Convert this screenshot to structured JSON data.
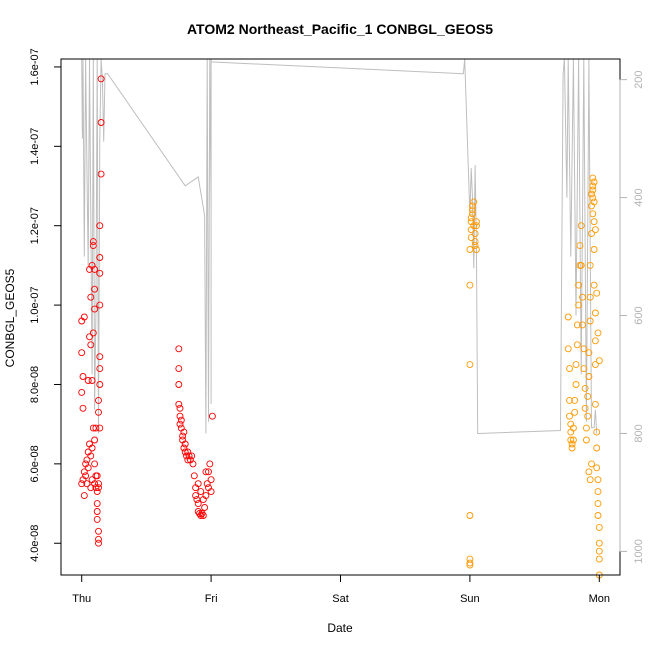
{
  "chart_data": {
    "type": "scatter",
    "title": "ATOM2 Northeast_Pacific_1 CONBGL_GEOS5",
    "xlabel": "Date",
    "ylabel": "CONBGL_GEOS5",
    "ylim": [
      3.2e-08,
      1.62e-07
    ],
    "y_ticks": [
      {
        "value": 4e-08,
        "label": "4.0e-08"
      },
      {
        "value": 6e-08,
        "label": "6.0e-08"
      },
      {
        "value": 8e-08,
        "label": "8.0e-08"
      },
      {
        "value": 1e-07,
        "label": "1.0e-07"
      },
      {
        "value": 1.2e-07,
        "label": "1.2e-07"
      },
      {
        "value": 1.4e-07,
        "label": "1.4e-07"
      },
      {
        "value": 1.6e-07,
        "label": "1.6e-07"
      }
    ],
    "x_range_days": [
      -0.16,
      4.16
    ],
    "x_ticks": [
      {
        "value": 0,
        "label": "Thu"
      },
      {
        "value": 1,
        "label": "Fri"
      },
      {
        "value": 2,
        "label": "Sat"
      },
      {
        "value": 3,
        "label": "Sun"
      },
      {
        "value": 4,
        "label": "Mon"
      }
    ],
    "y2_range": [
      1040,
      165
    ],
    "y2_ticks": [
      {
        "value": 200,
        "label": "200"
      },
      {
        "value": 400,
        "label": "400"
      },
      {
        "value": 600,
        "label": "600"
      },
      {
        "value": 800,
        "label": "800"
      },
      {
        "value": 1000,
        "label": "1000"
      }
    ],
    "grid": false,
    "colors": {
      "red": "#ff0000",
      "orange": "#ff9900",
      "pressure": "#bebebe"
    },
    "pressure_path": [
      [
        0.0,
        165
      ],
      [
        0.005,
        300
      ],
      [
        0.01,
        165
      ],
      [
        0.02,
        500
      ],
      [
        0.03,
        165
      ],
      [
        0.05,
        520
      ],
      [
        0.06,
        165
      ],
      [
        0.08,
        700
      ],
      [
        0.09,
        165
      ],
      [
        0.1,
        760
      ],
      [
        0.11,
        600
      ],
      [
        0.12,
        165
      ],
      [
        0.13,
        800
      ],
      [
        0.14,
        300
      ],
      [
        0.15,
        165
      ],
      [
        0.16,
        200
      ],
      [
        0.17,
        305
      ],
      [
        0.18,
        190
      ],
      [
        0.2,
        190
      ],
      [
        0.8,
        380
      ],
      [
        0.9,
        365
      ],
      [
        0.95,
        430
      ],
      [
        0.96,
        800
      ],
      [
        0.97,
        165
      ],
      [
        0.98,
        780
      ],
      [
        0.99,
        165
      ],
      [
        1.0,
        420
      ],
      [
        1.0,
        750
      ],
      [
        1.0,
        165
      ],
      [
        1.0,
        170
      ],
      [
        2.95,
        190
      ],
      [
        2.96,
        165
      ],
      [
        3.0,
        430
      ],
      [
        3.01,
        350
      ],
      [
        3.02,
        400
      ],
      [
        3.03,
        520
      ],
      [
        3.04,
        345
      ],
      [
        3.05,
        480
      ],
      [
        3.06,
        800
      ],
      [
        3.07,
        800
      ],
      [
        3.7,
        795
      ],
      [
        3.72,
        190
      ],
      [
        3.73,
        165
      ],
      [
        3.75,
        400
      ],
      [
        3.76,
        165
      ],
      [
        3.78,
        500
      ],
      [
        3.8,
        165
      ],
      [
        3.82,
        600
      ],
      [
        3.84,
        165
      ],
      [
        3.86,
        700
      ],
      [
        3.88,
        165
      ],
      [
        3.9,
        780
      ],
      [
        3.92,
        165
      ],
      [
        3.94,
        790
      ],
      [
        3.96,
        790
      ],
      [
        3.97,
        760
      ],
      [
        3.98,
        800
      ]
    ],
    "series": [
      {
        "color": "red",
        "points": [
          [
            0.0,
            9.6e-08
          ],
          [
            0.0,
            8.8e-08
          ],
          [
            0.0,
            7.8e-08
          ],
          [
            0.01,
            7.4e-08
          ],
          [
            0.01,
            8.2e-08
          ],
          [
            0.02,
            9.7e-08
          ],
          [
            0.0,
            5.5e-08
          ],
          [
            0.01,
            5.6e-08
          ],
          [
            0.02,
            5.8e-08
          ],
          [
            0.02,
            5.2e-08
          ],
          [
            0.03,
            5.7e-08
          ],
          [
            0.03,
            6e-08
          ],
          [
            0.04,
            5.5e-08
          ],
          [
            0.04,
            6.1e-08
          ],
          [
            0.05,
            5.9e-08
          ],
          [
            0.05,
            6.3e-08
          ],
          [
            0.05,
            8.1e-08
          ],
          [
            0.06,
            9.2e-08
          ],
          [
            0.06,
            1.09e-07
          ],
          [
            0.06,
            6.5e-08
          ],
          [
            0.07,
            5.4e-08
          ],
          [
            0.07,
            6.2e-08
          ],
          [
            0.07,
            9e-08
          ],
          [
            0.07,
            1.02e-07
          ],
          [
            0.08,
            1.1e-07
          ],
          [
            0.08,
            8.1e-08
          ],
          [
            0.08,
            6.4e-08
          ],
          [
            0.08,
            5.6e-08
          ],
          [
            0.09,
            1.15e-07
          ],
          [
            0.09,
            1.16e-07
          ],
          [
            0.09,
            9.3e-08
          ],
          [
            0.09,
            6.9e-08
          ],
          [
            0.1,
            1.09e-07
          ],
          [
            0.1,
            1.04e-07
          ],
          [
            0.1,
            9.9e-08
          ],
          [
            0.1,
            6.6e-08
          ],
          [
            0.1,
            6e-08
          ],
          [
            0.1,
            5.5e-08
          ],
          [
            0.11,
            6.9e-08
          ],
          [
            0.11,
            5.7e-08
          ],
          [
            0.11,
            5.4e-08
          ],
          [
            0.12,
            5.3e-08
          ],
          [
            0.12,
            5e-08
          ],
          [
            0.12,
            4.8e-08
          ],
          [
            0.12,
            4.6e-08
          ],
          [
            0.13,
            4.3e-08
          ],
          [
            0.13,
            4.1e-08
          ],
          [
            0.13,
            4e-08
          ],
          [
            0.13,
            5.5e-08
          ],
          [
            0.13,
            7.3e-08
          ],
          [
            0.13,
            7.6e-08
          ],
          [
            0.14,
            6.9e-08
          ],
          [
            0.14,
            8.4e-08
          ],
          [
            0.14,
            8e-08
          ],
          [
            0.14,
            8.7e-08
          ],
          [
            0.14,
            1e-07
          ],
          [
            0.14,
            1.08e-07
          ],
          [
            0.14,
            1.12e-07
          ],
          [
            0.14,
            1.2e-07
          ],
          [
            0.15,
            1.33e-07
          ],
          [
            0.15,
            1.46e-07
          ],
          [
            0.15,
            1.57e-07
          ],
          [
            0.13,
            5.4e-08
          ],
          [
            0.12,
            5.7e-08
          ],
          [
            0.75,
            8.9e-08
          ],
          [
            0.75,
            8.4e-08
          ],
          [
            0.75,
            8e-08
          ],
          [
            0.75,
            7.5e-08
          ],
          [
            0.76,
            7.2e-08
          ],
          [
            0.76,
            7e-08
          ],
          [
            0.77,
            6.9e-08
          ],
          [
            0.78,
            6.7e-08
          ],
          [
            0.78,
            6.6e-08
          ],
          [
            0.79,
            6.4e-08
          ],
          [
            0.8,
            6.3e-08
          ],
          [
            0.81,
            6.2e-08
          ],
          [
            0.82,
            6.1e-08
          ],
          [
            0.83,
            6.2e-08
          ],
          [
            0.84,
            6.1e-08
          ],
          [
            0.85,
            6.2e-08
          ],
          [
            0.86,
            6e-08
          ],
          [
            0.87,
            5.7e-08
          ],
          [
            0.88,
            5.4e-08
          ],
          [
            0.88,
            5.2e-08
          ],
          [
            0.89,
            5.1e-08
          ],
          [
            0.9,
            5e-08
          ],
          [
            0.9,
            4.8e-08
          ],
          [
            0.91,
            4.75e-08
          ],
          [
            0.92,
            4.7e-08
          ],
          [
            0.93,
            4.75e-08
          ],
          [
            0.94,
            4.7e-08
          ],
          [
            0.95,
            4.9e-08
          ],
          [
            0.96,
            5.2e-08
          ],
          [
            0.97,
            5.5e-08
          ],
          [
            0.98,
            5.8e-08
          ],
          [
            0.99,
            6e-08
          ],
          [
            1.0,
            5.6e-08
          ],
          [
            1.0,
            5.3e-08
          ],
          [
            1.01,
            7.2e-08
          ],
          [
            0.76,
            7.4e-08
          ],
          [
            0.77,
            7.1e-08
          ],
          [
            0.79,
            6.8e-08
          ],
          [
            0.8,
            6.5e-08
          ],
          [
            0.82,
            6.3e-08
          ],
          [
            0.9,
            5.5e-08
          ],
          [
            0.92,
            5.3e-08
          ],
          [
            0.94,
            5.1e-08
          ],
          [
            0.96,
            5.8e-08
          ],
          [
            0.98,
            5.4e-08
          ]
        ]
      },
      {
        "color": "orange",
        "points": [
          [
            3.0,
            3.5e-08
          ],
          [
            3.0,
            3.45e-08
          ],
          [
            3.0,
            3.6e-08
          ],
          [
            3.0,
            4.7e-08
          ],
          [
            3.0,
            8.5e-08
          ],
          [
            3.0,
            1.05e-07
          ],
          [
            3.0,
            1.14e-07
          ],
          [
            3.01,
            1.17e-07
          ],
          [
            3.01,
            1.19e-07
          ],
          [
            3.01,
            1.21e-07
          ],
          [
            3.01,
            1.22e-07
          ],
          [
            3.02,
            1.23e-07
          ],
          [
            3.02,
            1.24e-07
          ],
          [
            3.02,
            1.25e-07
          ],
          [
            3.03,
            1.26e-07
          ],
          [
            3.03,
            1.2e-07
          ],
          [
            3.04,
            1.18e-07
          ],
          [
            3.04,
            1.16e-07
          ],
          [
            3.04,
            1.15e-07
          ],
          [
            3.05,
            1.21e-07
          ],
          [
            3.05,
            1.14e-07
          ],
          [
            3.05,
            1.2e-07
          ],
          [
            3.76,
            9.7e-08
          ],
          [
            3.76,
            8.9e-08
          ],
          [
            3.77,
            8.4e-08
          ],
          [
            3.77,
            7.6e-08
          ],
          [
            3.77,
            7.2e-08
          ],
          [
            3.78,
            7e-08
          ],
          [
            3.78,
            6.8e-08
          ],
          [
            3.78,
            6.6e-08
          ],
          [
            3.79,
            6.5e-08
          ],
          [
            3.79,
            6.4e-08
          ],
          [
            3.8,
            6.6e-08
          ],
          [
            3.8,
            6.9e-08
          ],
          [
            3.81,
            7.3e-08
          ],
          [
            3.81,
            7.6e-08
          ],
          [
            3.82,
            8e-08
          ],
          [
            3.82,
            8.5e-08
          ],
          [
            3.83,
            9e-08
          ],
          [
            3.83,
            9.5e-08
          ],
          [
            3.84,
            1e-07
          ],
          [
            3.84,
            1.05e-07
          ],
          [
            3.85,
            1.1e-07
          ],
          [
            3.85,
            1.15e-07
          ],
          [
            3.86,
            1.2e-07
          ],
          [
            3.86,
            1.1e-07
          ],
          [
            3.87,
            1.02e-07
          ],
          [
            3.87,
            9.5e-08
          ],
          [
            3.88,
            8.9e-08
          ],
          [
            3.88,
            8.4e-08
          ],
          [
            3.89,
            7.9e-08
          ],
          [
            3.89,
            7.4e-08
          ],
          [
            3.9,
            6.9e-08
          ],
          [
            3.9,
            6.6e-08
          ],
          [
            3.91,
            7.2e-08
          ],
          [
            3.91,
            7.7e-08
          ],
          [
            3.92,
            8.2e-08
          ],
          [
            3.92,
            8.8e-08
          ],
          [
            3.93,
            9.6e-08
          ],
          [
            3.93,
            1.02e-07
          ],
          [
            3.93,
            1.1e-07
          ],
          [
            3.94,
            1.18e-07
          ],
          [
            3.94,
            1.25e-07
          ],
          [
            3.94,
            1.28e-07
          ],
          [
            3.95,
            1.3e-07
          ],
          [
            3.95,
            1.32e-07
          ],
          [
            3.95,
            1.29e-07
          ],
          [
            3.96,
            1.26e-07
          ],
          [
            3.96,
            1.21e-07
          ],
          [
            3.96,
            1.14e-07
          ],
          [
            3.96,
            1.05e-07
          ],
          [
            3.97,
            9.8e-08
          ],
          [
            3.97,
            9.1e-08
          ],
          [
            3.97,
            8.5e-08
          ],
          [
            3.97,
            7.5e-08
          ],
          [
            3.98,
            6.8e-08
          ],
          [
            3.98,
            6.4e-08
          ],
          [
            3.98,
            5.9e-08
          ],
          [
            3.99,
            5.6e-08
          ],
          [
            3.99,
            5.3e-08
          ],
          [
            3.99,
            5e-08
          ],
          [
            3.99,
            4.7e-08
          ],
          [
            4.0,
            4.4e-08
          ],
          [
            4.0,
            4e-08
          ],
          [
            4.0,
            3.8e-08
          ],
          [
            4.0,
            3.6e-08
          ],
          [
            4.0,
            3.2e-08
          ],
          [
            3.92,
            5.8e-08
          ],
          [
            3.93,
            5.6e-08
          ],
          [
            3.94,
            6e-08
          ],
          [
            3.95,
            1.23e-07
          ],
          [
            3.95,
            1.27e-07
          ],
          [
            3.96,
            1.31e-07
          ],
          [
            3.97,
            1.19e-07
          ],
          [
            3.98,
            1.03e-07
          ],
          [
            3.99,
            9.3e-08
          ],
          [
            4.0,
            8.6e-08
          ]
        ]
      }
    ]
  }
}
